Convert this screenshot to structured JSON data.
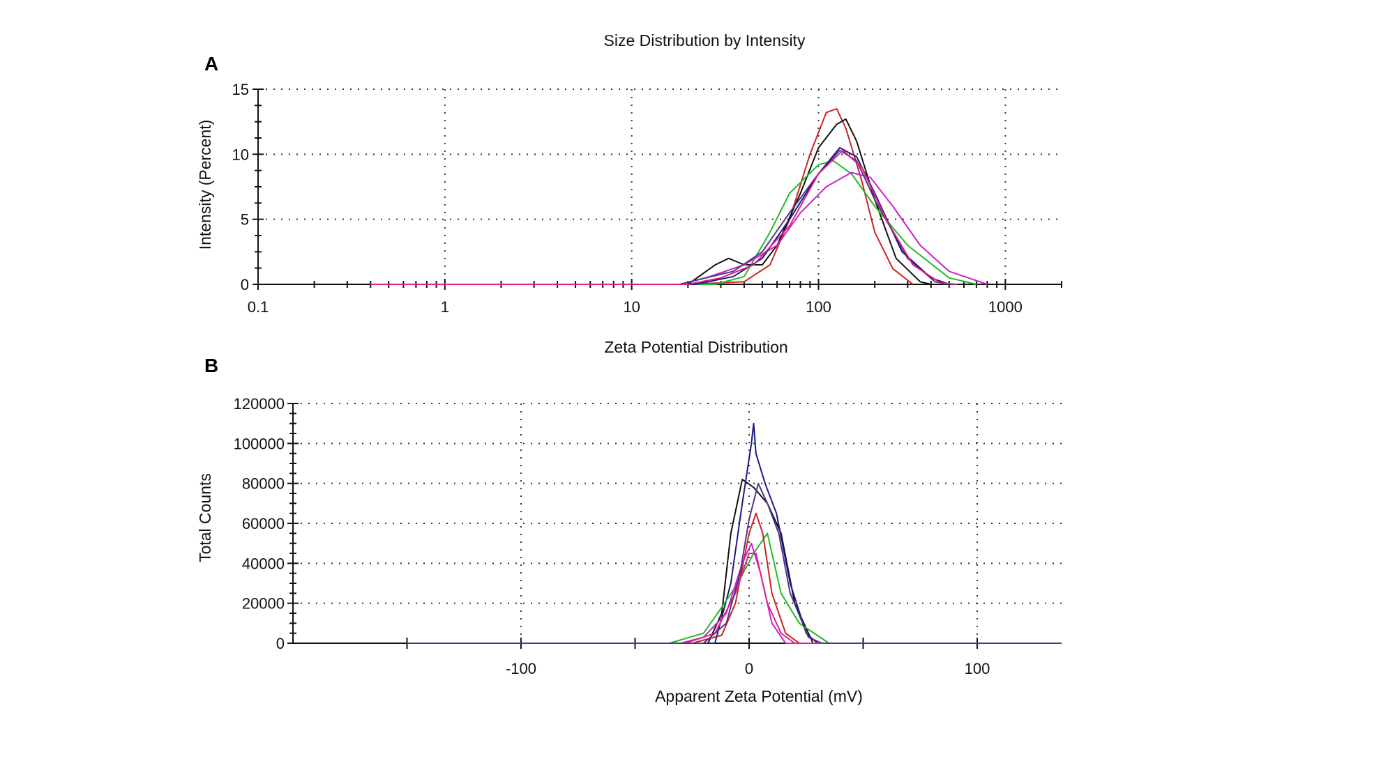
{
  "figure": {
    "panel_letters": [
      "A",
      "B"
    ]
  },
  "chart_data": [
    {
      "type": "line",
      "panel": "A",
      "title": "Size Distribution by Intensity",
      "xlabel": "",
      "ylabel": "Intensity (Percent)",
      "xscale": "log",
      "xlim": [
        0.1,
        2000
      ],
      "ylim": [
        0,
        15
      ],
      "x_ticks": [
        0.1,
        1,
        10,
        100,
        1000
      ],
      "x_tick_labels": [
        "0.1",
        "1",
        "10",
        "100",
        "1000"
      ],
      "y_ticks": [
        0,
        5,
        10,
        15
      ],
      "y_tick_labels": [
        "0",
        "5",
        "10",
        "15"
      ],
      "grid": true,
      "series": [
        {
          "color": "#cc2222",
          "points": [
            [
              0.4,
              0
            ],
            [
              20,
              0
            ],
            [
              40,
              0.2
            ],
            [
              55,
              1.5
            ],
            [
              70,
              5
            ],
            [
              90,
              10
            ],
            [
              110,
              13.2
            ],
            [
              125,
              13.5
            ],
            [
              140,
              12
            ],
            [
              170,
              8
            ],
            [
              200,
              4
            ],
            [
              250,
              1.2
            ],
            [
              320,
              0
            ]
          ]
        },
        {
          "color": "#111111",
          "points": [
            [
              0.4,
              0
            ],
            [
              20,
              0
            ],
            [
              28,
              1.5
            ],
            [
              33,
              2
            ],
            [
              40,
              1.5
            ],
            [
              50,
              1.5
            ],
            [
              60,
              3
            ],
            [
              80,
              7
            ],
            [
              100,
              10.5
            ],
            [
              125,
              12.3
            ],
            [
              140,
              12.7
            ],
            [
              160,
              11
            ],
            [
              200,
              6.5
            ],
            [
              260,
              2
            ],
            [
              350,
              0.2
            ],
            [
              400,
              0
            ]
          ]
        },
        {
          "color": "#22bb22",
          "points": [
            [
              0.4,
              0
            ],
            [
              28,
              0
            ],
            [
              40,
              0.6
            ],
            [
              55,
              4
            ],
            [
              70,
              7
            ],
            [
              100,
              9.2
            ],
            [
              120,
              9.5
            ],
            [
              150,
              8.5
            ],
            [
              200,
              6
            ],
            [
              300,
              3
            ],
            [
              500,
              0.5
            ],
            [
              700,
              0
            ]
          ]
        },
        {
          "color": "#cc22cc",
          "points": [
            [
              0.4,
              0
            ],
            [
              18,
              0
            ],
            [
              25,
              0.5
            ],
            [
              40,
              1.5
            ],
            [
              60,
              3
            ],
            [
              80,
              5.5
            ],
            [
              110,
              7.5
            ],
            [
              150,
              8.6
            ],
            [
              190,
              8.2
            ],
            [
              250,
              6
            ],
            [
              350,
              3
            ],
            [
              500,
              1
            ],
            [
              800,
              0
            ]
          ]
        },
        {
          "color": "#553388",
          "points": [
            [
              0.4,
              0
            ],
            [
              18,
              0
            ],
            [
              25,
              0.5
            ],
            [
              35,
              1
            ],
            [
              50,
              2.5
            ],
            [
              70,
              5.5
            ],
            [
              100,
              8.5
            ],
            [
              130,
              10.3
            ],
            [
              160,
              9.5
            ],
            [
              200,
              6.5
            ],
            [
              300,
              2
            ],
            [
              420,
              0.2
            ],
            [
              500,
              0
            ]
          ]
        },
        {
          "color": "#1a1a80",
          "points": [
            [
              0.4,
              0
            ],
            [
              22,
              0
            ],
            [
              35,
              0.6
            ],
            [
              50,
              2
            ],
            [
              70,
              5
            ],
            [
              100,
              8.5
            ],
            [
              130,
              10.5
            ],
            [
              160,
              9.8
            ],
            [
              200,
              7
            ],
            [
              280,
              2.5
            ],
            [
              400,
              0.5
            ],
            [
              500,
              0
            ]
          ]
        },
        {
          "color": "#dd2288",
          "points": [
            [
              0.4,
              0
            ],
            [
              20,
              0
            ],
            [
              30,
              0.5
            ],
            [
              45,
              1.5
            ],
            [
              70,
              4.5
            ],
            [
              100,
              8.5
            ],
            [
              135,
              10.3
            ],
            [
              170,
              9
            ],
            [
              230,
              5
            ],
            [
              320,
              1.5
            ],
            [
              450,
              0.1
            ],
            [
              550,
              0
            ]
          ]
        }
      ]
    },
    {
      "type": "line",
      "panel": "B",
      "title": "Zeta Potential Distribution",
      "xlabel": "Apparent Zeta Potential (mV)",
      "ylabel": "Total Counts",
      "xlim": [
        -200,
        137
      ],
      "ylim": [
        0,
        120000
      ],
      "x_ticks": [
        -100,
        0,
        100
      ],
      "x_tick_labels": [
        "-100",
        "0",
        "100"
      ],
      "y_ticks": [
        0,
        20000,
        40000,
        60000,
        80000,
        100000,
        120000
      ],
      "y_tick_labels": [
        "0",
        "20000",
        "40000",
        "60000",
        "80000",
        "100000",
        "120000"
      ],
      "grid": true,
      "series": [
        {
          "color": "#111111",
          "points": [
            [
              -200,
              0
            ],
            [
              -18,
              0
            ],
            [
              -12,
              15000
            ],
            [
              -8,
              55000
            ],
            [
              -3,
              82000
            ],
            [
              2,
              78000
            ],
            [
              8,
              70000
            ],
            [
              14,
              55000
            ],
            [
              20,
              20000
            ],
            [
              28,
              0
            ],
            [
              137,
              0
            ]
          ]
        },
        {
          "color": "#1a1a80",
          "points": [
            [
              -150,
              0
            ],
            [
              -15,
              0
            ],
            [
              -8,
              30000
            ],
            [
              -3,
              70000
            ],
            [
              1,
              100000
            ],
            [
              2,
              110000
            ],
            [
              3,
              95000
            ],
            [
              7,
              80000
            ],
            [
              12,
              65000
            ],
            [
              18,
              30000
            ],
            [
              25,
              5000
            ],
            [
              30,
              0
            ],
            [
              137,
              0
            ]
          ]
        },
        {
          "color": "#22bb22",
          "points": [
            [
              -150,
              0
            ],
            [
              -35,
              0
            ],
            [
              -20,
              5000
            ],
            [
              -12,
              18000
            ],
            [
              -5,
              30000
            ],
            [
              2,
              45000
            ],
            [
              8,
              55000
            ],
            [
              14,
              25000
            ],
            [
              22,
              10000
            ],
            [
              35,
              0
            ],
            [
              137,
              0
            ]
          ]
        },
        {
          "color": "#cc2222",
          "points": [
            [
              -150,
              0
            ],
            [
              -25,
              0
            ],
            [
              -12,
              4000
            ],
            [
              -6,
              20000
            ],
            [
              0,
              55000
            ],
            [
              3,
              65000
            ],
            [
              6,
              55000
            ],
            [
              10,
              25000
            ],
            [
              16,
              5000
            ],
            [
              22,
              0
            ],
            [
              137,
              0
            ]
          ]
        },
        {
          "color": "#cc22cc",
          "points": [
            [
              -150,
              0
            ],
            [
              -30,
              0
            ],
            [
              -20,
              3000
            ],
            [
              -10,
              15000
            ],
            [
              -3,
              40000
            ],
            [
              1,
              50000
            ],
            [
              5,
              35000
            ],
            [
              10,
              10000
            ],
            [
              16,
              0
            ],
            [
              137,
              0
            ]
          ]
        },
        {
          "color": "#dd2288",
          "points": [
            [
              -150,
              0
            ],
            [
              -28,
              0
            ],
            [
              -15,
              5000
            ],
            [
              -6,
              25000
            ],
            [
              0,
              45000
            ],
            [
              3,
              45000
            ],
            [
              8,
              20000
            ],
            [
              14,
              5000
            ],
            [
              20,
              0
            ],
            [
              137,
              0
            ]
          ]
        },
        {
          "color": "#553388",
          "points": [
            [
              -150,
              0
            ],
            [
              -20,
              0
            ],
            [
              -10,
              10000
            ],
            [
              -4,
              35000
            ],
            [
              0,
              62000
            ],
            [
              4,
              80000
            ],
            [
              8,
              70000
            ],
            [
              13,
              55000
            ],
            [
              18,
              25000
            ],
            [
              26,
              3000
            ],
            [
              32,
              0
            ],
            [
              137,
              0
            ]
          ]
        }
      ]
    }
  ]
}
